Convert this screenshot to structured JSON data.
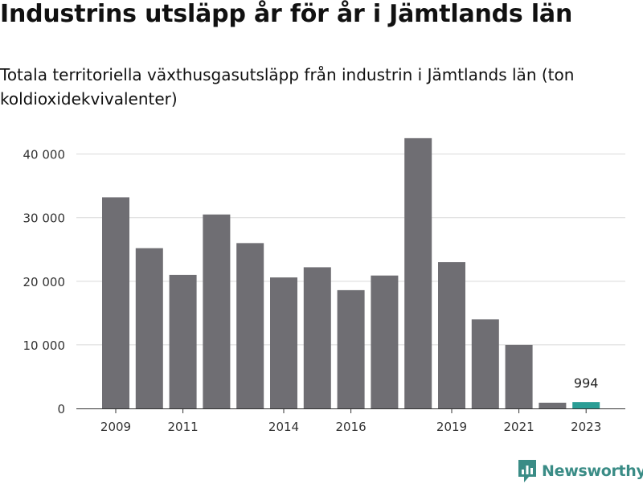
{
  "header": {
    "title": "Industrins utsläpp år för år i Jämtlands län",
    "subtitle": "Totala territoriella växthusgasutsläpp från industrin i Jämtlands län (ton koldioxidekvivalenter)"
  },
  "branding": {
    "logo_text": "Newsworthy",
    "logo_color": "#3a8c86",
    "icon": "newsworthy-logo-icon"
  },
  "colors": {
    "bar": "#6f6e73",
    "highlight_bar": "#2a9d95",
    "grid": "#d9d9d9"
  },
  "chart_data": {
    "type": "bar",
    "categories": [
      "2009",
      "2010",
      "2011",
      "2012",
      "2013",
      "2014",
      "2015",
      "2016",
      "2017",
      "2018",
      "2019",
      "2020",
      "2021",
      "2022",
      "2023"
    ],
    "values": [
      33200,
      25200,
      21000,
      30500,
      26000,
      20600,
      22200,
      18600,
      20900,
      42500,
      23000,
      14000,
      10000,
      900,
      994
    ],
    "highlight_index": 14,
    "data_labels": [
      {
        "index": 14,
        "text": "994"
      }
    ],
    "x_tick_labels": [
      "2009",
      "2011",
      "2014",
      "2016",
      "2019",
      "2021",
      "2023"
    ],
    "y_ticks": [
      0,
      10000,
      20000,
      30000,
      40000
    ],
    "y_tick_labels": [
      "0",
      "10 000",
      "20 000",
      "30 000",
      "40 000"
    ],
    "ylim": [
      0,
      44000
    ],
    "grid": true,
    "legend": "none"
  }
}
